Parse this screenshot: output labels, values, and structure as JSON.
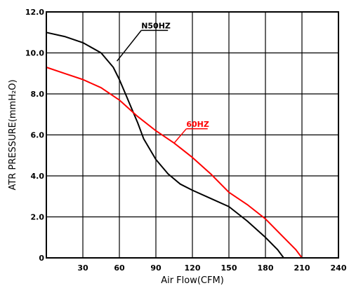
{
  "chart_data": {
    "type": "line",
    "xlabel": "Air Flow(CFM)",
    "ylabel": "ATR PRESSURE(mmH₂O)",
    "xlim": [
      0,
      240
    ],
    "ylim": [
      0,
      12
    ],
    "x_ticks": [
      30,
      60,
      90,
      120,
      150,
      180,
      210,
      240
    ],
    "x_tick_labels": [
      "30",
      "60",
      "90",
      "120",
      "150",
      "180",
      "210",
      "240"
    ],
    "y_ticks": [
      0,
      2,
      4,
      6,
      8,
      10,
      12
    ],
    "y_tick_labels": [
      "0",
      "2.0",
      "4.0",
      "6.0",
      "8.0",
      "10.0",
      "12.0"
    ],
    "grid": true,
    "series": [
      {
        "name": "N50HZ",
        "color": "#000000",
        "x": [
          0,
          15,
          30,
          45,
          55,
          60,
          65,
          70,
          75,
          80,
          90,
          100,
          110,
          120,
          135,
          150,
          165,
          180,
          190,
          195
        ],
        "y": [
          11.0,
          10.8,
          10.5,
          10.0,
          9.3,
          8.7,
          8.0,
          7.3,
          6.6,
          5.8,
          4.8,
          4.1,
          3.6,
          3.3,
          2.9,
          2.5,
          1.8,
          1.0,
          0.4,
          0
        ]
      },
      {
        "name": "60HZ",
        "color": "#ff0000",
        "x": [
          0,
          15,
          30,
          45,
          60,
          75,
          90,
          105,
          120,
          135,
          150,
          165,
          180,
          195,
          205,
          210
        ],
        "y": [
          9.3,
          9.0,
          8.7,
          8.3,
          7.7,
          6.9,
          6.2,
          5.6,
          4.9,
          4.1,
          3.2,
          2.6,
          1.9,
          1.0,
          0.4,
          0
        ]
      }
    ],
    "annotations": [
      {
        "text": "N50HZ",
        "color": "#000000",
        "label_at": [
          78,
          11.2
        ],
        "points_to": [
          58,
          9.6
        ]
      },
      {
        "text": "60HZ",
        "color": "#ff0000",
        "label_at": [
          115,
          6.4
        ],
        "points_to": [
          105,
          5.6
        ]
      }
    ]
  }
}
